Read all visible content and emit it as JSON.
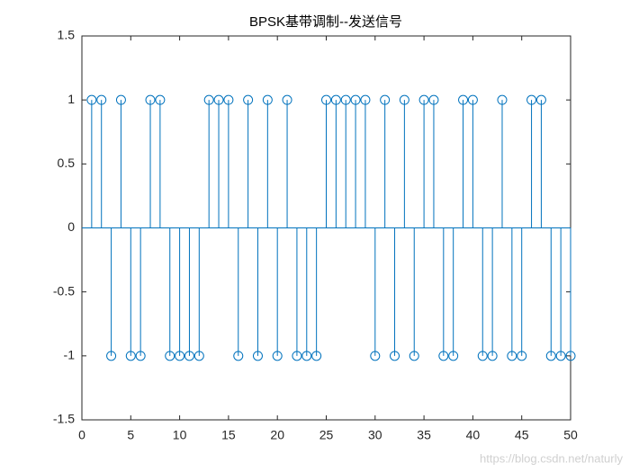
{
  "chart_data": {
    "type": "stem",
    "title": "BPSK基带调制--发送信号",
    "x": [
      1,
      2,
      3,
      4,
      5,
      6,
      7,
      8,
      9,
      10,
      11,
      12,
      13,
      14,
      15,
      16,
      17,
      18,
      19,
      20,
      21,
      22,
      23,
      24,
      25,
      26,
      27,
      28,
      29,
      30,
      31,
      32,
      33,
      34,
      35,
      36,
      37,
      38,
      39,
      40,
      41,
      42,
      43,
      44,
      45,
      46,
      47,
      48,
      49,
      50
    ],
    "values": [
      1,
      1,
      -1,
      1,
      -1,
      -1,
      1,
      1,
      -1,
      -1,
      -1,
      -1,
      1,
      1,
      1,
      -1,
      1,
      -1,
      1,
      -1,
      1,
      -1,
      -1,
      -1,
      1,
      1,
      1,
      1,
      1,
      -1,
      1,
      -1,
      1,
      -1,
      1,
      1,
      -1,
      -1,
      1,
      1,
      -1,
      -1,
      1,
      -1,
      -1,
      1,
      1,
      -1,
      -1,
      -1
    ],
    "color": "#0072BD",
    "xlim": [
      0,
      50
    ],
    "xticks": [
      0,
      5,
      10,
      15,
      20,
      25,
      30,
      35,
      40,
      45,
      50
    ],
    "ylim": [
      -1.5,
      1.5
    ],
    "yticks": [
      -1.5,
      -1,
      -0.5,
      0,
      0.5,
      1,
      1.5
    ],
    "grid": false,
    "watermark": "https://blog.csdn.net/naturly"
  }
}
